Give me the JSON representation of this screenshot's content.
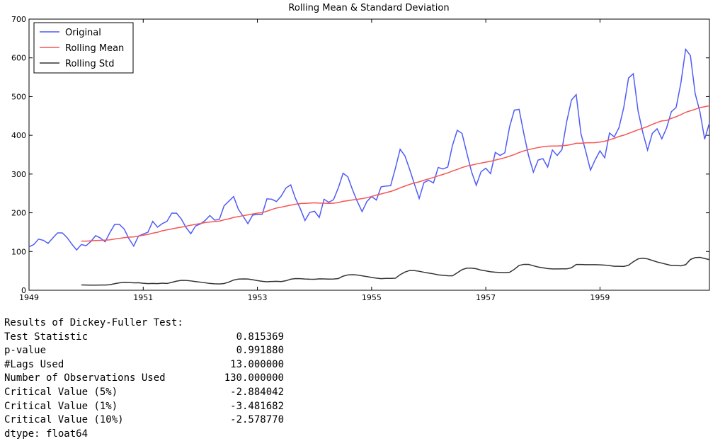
{
  "chart_data": {
    "type": "line",
    "title": "Rolling Mean & Standard Deviation",
    "x": [
      "1949-01",
      "1949-02",
      "1949-03",
      "1949-04",
      "1949-05",
      "1949-06",
      "1949-07",
      "1949-08",
      "1949-09",
      "1949-10",
      "1949-11",
      "1949-12",
      "1950-01",
      "1950-02",
      "1950-03",
      "1950-04",
      "1950-05",
      "1950-06",
      "1950-07",
      "1950-08",
      "1950-09",
      "1950-10",
      "1950-11",
      "1950-12",
      "1951-01",
      "1951-02",
      "1951-03",
      "1951-04",
      "1951-05",
      "1951-06",
      "1951-07",
      "1951-08",
      "1951-09",
      "1951-10",
      "1951-11",
      "1951-12",
      "1952-01",
      "1952-02",
      "1952-03",
      "1952-04",
      "1952-05",
      "1952-06",
      "1952-07",
      "1952-08",
      "1952-09",
      "1952-10",
      "1952-11",
      "1952-12",
      "1953-01",
      "1953-02",
      "1953-03",
      "1953-04",
      "1953-05",
      "1953-06",
      "1953-07",
      "1953-08",
      "1953-09",
      "1953-10",
      "1953-11",
      "1953-12",
      "1954-01",
      "1954-02",
      "1954-03",
      "1954-04",
      "1954-05",
      "1954-06",
      "1954-07",
      "1954-08",
      "1954-09",
      "1954-10",
      "1954-11",
      "1954-12",
      "1955-01",
      "1955-02",
      "1955-03",
      "1955-04",
      "1955-05",
      "1955-06",
      "1955-07",
      "1955-08",
      "1955-09",
      "1955-10",
      "1955-11",
      "1955-12",
      "1956-01",
      "1956-02",
      "1956-03",
      "1956-04",
      "1956-05",
      "1956-06",
      "1956-07",
      "1956-08",
      "1956-09",
      "1956-10",
      "1956-11",
      "1956-12",
      "1957-01",
      "1957-02",
      "1957-03",
      "1957-04",
      "1957-05",
      "1957-06",
      "1957-07",
      "1957-08",
      "1957-09",
      "1957-10",
      "1957-11",
      "1957-12",
      "1958-01",
      "1958-02",
      "1958-03",
      "1958-04",
      "1958-05",
      "1958-06",
      "1958-07",
      "1958-08",
      "1958-09",
      "1958-10",
      "1958-11",
      "1958-12",
      "1959-01",
      "1959-02",
      "1959-03",
      "1959-04",
      "1959-05",
      "1959-06",
      "1959-07",
      "1959-08",
      "1959-09",
      "1959-10",
      "1959-11",
      "1959-12",
      "1960-01",
      "1960-02",
      "1960-03",
      "1960-04",
      "1960-05",
      "1960-06",
      "1960-07",
      "1960-08",
      "1960-09",
      "1960-10",
      "1960-11",
      "1960-12"
    ],
    "series": [
      {
        "name": "Original",
        "color": "#4f5cf5",
        "values": [
          112,
          118,
          132,
          129,
          121,
          135,
          148,
          148,
          136,
          119,
          104,
          118,
          115,
          126,
          141,
          135,
          125,
          149,
          170,
          170,
          158,
          133,
          114,
          140,
          145,
          150,
          178,
          163,
          172,
          178,
          199,
          199,
          184,
          162,
          146,
          166,
          171,
          180,
          193,
          181,
          183,
          218,
          230,
          242,
          209,
          191,
          172,
          194,
          196,
          196,
          236,
          235,
          229,
          243,
          264,
          272,
          237,
          211,
          180,
          201,
          204,
          188,
          235,
          227,
          234,
          264,
          302,
          293,
          259,
          229,
          203,
          229,
          242,
          233,
          267,
          269,
          270,
          315,
          364,
          347,
          312,
          274,
          237,
          278,
          284,
          277,
          317,
          313,
          318,
          374,
          413,
          405,
          355,
          306,
          271,
          306,
          315,
          301,
          356,
          348,
          355,
          422,
          465,
          467,
          404,
          347,
          305,
          336,
          340,
          318,
          362,
          348,
          363,
          435,
          491,
          505,
          404,
          359,
          310,
          337,
          360,
          342,
          406,
          396,
          420,
          472,
          548,
          559,
          463,
          407,
          362,
          405,
          417,
          391,
          419,
          461,
          472,
          535,
          622,
          606,
          508,
          461,
          390,
          432
        ]
      },
      {
        "name": "Rolling Mean",
        "color": "#f65555",
        "values": [
          null,
          null,
          null,
          null,
          null,
          null,
          null,
          null,
          null,
          null,
          null,
          126.7,
          126.9,
          127.6,
          128.3,
          128.8,
          129.2,
          130.3,
          132.2,
          134.0,
          135.8,
          137.0,
          137.8,
          139.7,
          142.2,
          144.2,
          147.3,
          149.6,
          153.5,
          155.9,
          158.3,
          160.8,
          162.9,
          165.3,
          168.0,
          170.2,
          172.3,
          174.8,
          176.1,
          177.6,
          178.5,
          181.8,
          184.4,
          188.0,
          190.1,
          192.5,
          194.7,
          197.0,
          199.1,
          200.4,
          204.0,
          208.5,
          212.3,
          214.4,
          217.3,
          219.8,
          222.1,
          223.8,
          224.4,
          225.0,
          225.7,
          225.0,
          224.9,
          224.3,
          224.7,
          226.4,
          229.6,
          231.3,
          233.2,
          234.7,
          236.6,
          238.9,
          242.1,
          245.8,
          248.5,
          252.0,
          255.0,
          259.3,
          264.4,
          268.9,
          273.3,
          277.1,
          279.9,
          284.0,
          287.5,
          291.2,
          295.3,
          299.0,
          303.0,
          307.9,
          312.0,
          316.8,
          320.4,
          323.1,
          325.9,
          328.3,
          330.8,
          332.8,
          336.1,
          339.0,
          342.1,
          346.1,
          350.4,
          355.6,
          359.7,
          363.1,
          365.9,
          368.4,
          370.5,
          371.9,
          372.4,
          372.4,
          373.1,
          374.2,
          376.3,
          379.5,
          379.5,
          380.5,
          380.9,
          381.0,
          382.7,
          384.7,
          388.3,
          392.3,
          397.1,
          400.2,
          404.9,
          409.4,
          414.3,
          418.3,
          422.7,
          428.3,
          433.1,
          437.2,
          438.3,
          443.7,
          448.0,
          453.3,
          459.4,
          463.3,
          467.1,
          471.6,
          473.9,
          476.2
        ]
      },
      {
        "name": "Rolling Std",
        "color": "#333333",
        "values": [
          null,
          null,
          null,
          null,
          null,
          null,
          null,
          null,
          null,
          null,
          null,
          13.7,
          13.4,
          13.2,
          13.3,
          13.4,
          13.5,
          14.5,
          16.9,
          19.1,
          20.3,
          20.0,
          19.1,
          19.5,
          18.0,
          17.1,
          17.6,
          17.1,
          18.2,
          17.5,
          20.3,
          23.6,
          25.5,
          25.4,
          24.1,
          22.3,
          20.9,
          19.3,
          17.5,
          16.6,
          16.2,
          17.4,
          21.1,
          26.3,
          28.9,
          29.3,
          29.0,
          27.2,
          24.9,
          23.0,
          22.0,
          22.7,
          23.0,
          22.4,
          24.6,
          28.5,
          30.2,
          29.9,
          29.0,
          28.5,
          28.4,
          29.4,
          29.2,
          28.9,
          29.0,
          30.2,
          36.3,
          39.6,
          40.3,
          39.4,
          37.2,
          35.3,
          33.1,
          31.4,
          30.0,
          30.6,
          30.6,
          31.0,
          40.3,
          46.9,
          51.0,
          50.6,
          49.0,
          46.5,
          44.4,
          42.4,
          39.8,
          38.6,
          37.5,
          37.2,
          45.0,
          53.2,
          57.0,
          57.1,
          55.5,
          52.0,
          50.0,
          47.8,
          46.6,
          46.0,
          45.5,
          46.3,
          54.0,
          64.1,
          66.8,
          66.7,
          63.2,
          60.0,
          58.0,
          56.0,
          55.0,
          55.0,
          55.3,
          55.2,
          58.0,
          66.4,
          66.4,
          66.0,
          66.0,
          66.0,
          65.6,
          65.0,
          63.8,
          62.0,
          62.0,
          61.5,
          64.6,
          73.5,
          81.0,
          82.6,
          81.0,
          77.0,
          73.0,
          70.0,
          67.0,
          64.0,
          64.0,
          63.0,
          66.0,
          79.4,
          84.3,
          85.0,
          82.0,
          79.0
        ]
      }
    ],
    "xlim": [
      "1949-01",
      "1960-12"
    ],
    "xticks": [
      "1949",
      "1951",
      "1953",
      "1955",
      "1957",
      "1959"
    ],
    "ylim": [
      0,
      700
    ],
    "yticks": [
      0,
      100,
      200,
      300,
      400,
      500,
      600,
      700
    ],
    "legend": "upper left",
    "grid": false
  },
  "results": {
    "title": "Results of Dickey-Fuller Test:",
    "rows": [
      [
        "Test Statistic",
        "0.815369"
      ],
      [
        "p-value",
        "0.991880"
      ],
      [
        "#Lags Used",
        "13.000000"
      ],
      [
        "Number of Observations Used",
        "130.000000"
      ],
      [
        "Critical Value (5%)",
        "-2.884042"
      ],
      [
        "Critical Value (1%)",
        "-3.481682"
      ],
      [
        "Critical Value (10%)",
        "-2.578770"
      ]
    ],
    "footer": "dtype: float64"
  }
}
